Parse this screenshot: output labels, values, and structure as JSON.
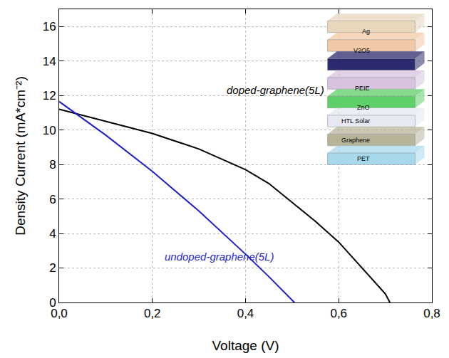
{
  "chart_data": {
    "type": "line",
    "x_label": "Voltage (V)",
    "y_label": "Density Current (mA*cm⁻²)",
    "xlim": [
      0,
      0.8
    ],
    "xticks": [
      {
        "value": 0,
        "label": "0,0"
      },
      {
        "value": 0.2,
        "label": "0,2"
      },
      {
        "value": 0.4,
        "label": "0,4"
      },
      {
        "value": 0.6,
        "label": "0,6"
      },
      {
        "value": 0.8,
        "label": "0,8"
      }
    ],
    "ylim": [
      0,
      17
    ],
    "yticks": [
      0,
      2,
      4,
      6,
      8,
      10,
      12,
      14,
      16
    ],
    "grid": true,
    "series": [
      {
        "name": "doped-graphene(5L)",
        "color": "#000000",
        "x": [
          0,
          0.05,
          0.1,
          0.2,
          0.3,
          0.4,
          0.45,
          0.5,
          0.55,
          0.6,
          0.65,
          0.7,
          0.71
        ],
        "values": [
          11.2,
          10.85,
          10.5,
          9.8,
          8.9,
          7.7,
          6.9,
          5.8,
          4.7,
          3.5,
          2.0,
          0.5,
          0
        ]
      },
      {
        "name": "undoped-graphene(5L)",
        "color": "#1f1fd0",
        "x": [
          0,
          0.1,
          0.2,
          0.3,
          0.4,
          0.45,
          0.505
        ],
        "values": [
          11.65,
          9.7,
          7.6,
          5.3,
          2.8,
          1.5,
          0
        ]
      }
    ],
    "inset": {
      "layers": [
        {
          "label": "Ag",
          "color": "#e8d6bd"
        },
        {
          "label": "V2O5",
          "color": "#f2c9a6"
        },
        {
          "label": null,
          "color": "#2c2a6e"
        },
        {
          "label": "PEIE",
          "color": "#d7c3e0"
        },
        {
          "label": "ZnO",
          "color": "#5fcf6a"
        },
        {
          "label": "HTL Solar",
          "color": "#e6e8f2"
        },
        {
          "label": "Graphene",
          "color": "#b8b49a"
        },
        {
          "label": "PET",
          "color": "#a8d8ec"
        }
      ]
    }
  }
}
